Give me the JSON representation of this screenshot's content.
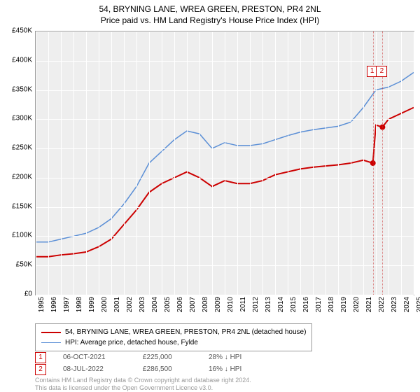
{
  "title": "54, BRYNING LANE, WREA GREEN, PRESTON, PR4 2NL",
  "subtitle": "Price paid vs. HM Land Registry's House Price Index (HPI)",
  "chart": {
    "type": "line",
    "background_color": "#eeeeee",
    "grid_color": "#ffffff",
    "border_color": "#999999",
    "x_range": [
      1995,
      2025
    ],
    "y_range": [
      0,
      450000
    ],
    "y_ticks": [
      0,
      50000,
      100000,
      150000,
      200000,
      250000,
      300000,
      350000,
      400000,
      450000
    ],
    "y_tick_labels": [
      "£0",
      "£50K",
      "£100K",
      "£150K",
      "£200K",
      "£250K",
      "£300K",
      "£350K",
      "£400K",
      "£450K"
    ],
    "x_ticks": [
      1995,
      1996,
      1997,
      1998,
      1999,
      2000,
      2001,
      2002,
      2003,
      2004,
      2005,
      2006,
      2007,
      2008,
      2009,
      2010,
      2011,
      2012,
      2013,
      2014,
      2015,
      2016,
      2017,
      2018,
      2019,
      2020,
      2021,
      2022,
      2023,
      2024,
      2025
    ],
    "series": [
      {
        "name": "54, BRYNING LANE, WREA GREEN, PRESTON, PR4 2NL (detached house)",
        "color": "#cc0000",
        "line_width": 2,
        "data": [
          [
            1995,
            65000
          ],
          [
            1996,
            65000
          ],
          [
            1997,
            68000
          ],
          [
            1998,
            70000
          ],
          [
            1999,
            73000
          ],
          [
            2000,
            82000
          ],
          [
            2001,
            95000
          ],
          [
            2002,
            120000
          ],
          [
            2003,
            145000
          ],
          [
            2004,
            175000
          ],
          [
            2005,
            190000
          ],
          [
            2006,
            200000
          ],
          [
            2007,
            210000
          ],
          [
            2008,
            200000
          ],
          [
            2009,
            185000
          ],
          [
            2010,
            195000
          ],
          [
            2011,
            190000
          ],
          [
            2012,
            190000
          ],
          [
            2013,
            195000
          ],
          [
            2014,
            205000
          ],
          [
            2015,
            210000
          ],
          [
            2016,
            215000
          ],
          [
            2017,
            218000
          ],
          [
            2018,
            220000
          ],
          [
            2019,
            222000
          ],
          [
            2020,
            225000
          ],
          [
            2021,
            230000
          ],
          [
            2021.76,
            225000
          ],
          [
            2022,
            290000
          ],
          [
            2022.52,
            286500
          ],
          [
            2023,
            300000
          ],
          [
            2024,
            310000
          ],
          [
            2025,
            320000
          ]
        ]
      },
      {
        "name": "HPI: Average price, detached house, Fylde",
        "color": "#5b8fd6",
        "line_width": 1.5,
        "data": [
          [
            1995,
            90000
          ],
          [
            1996,
            90000
          ],
          [
            1997,
            95000
          ],
          [
            1998,
            100000
          ],
          [
            1999,
            105000
          ],
          [
            2000,
            115000
          ],
          [
            2001,
            130000
          ],
          [
            2002,
            155000
          ],
          [
            2003,
            185000
          ],
          [
            2004,
            225000
          ],
          [
            2005,
            245000
          ],
          [
            2006,
            265000
          ],
          [
            2007,
            280000
          ],
          [
            2008,
            275000
          ],
          [
            2009,
            250000
          ],
          [
            2010,
            260000
          ],
          [
            2011,
            255000
          ],
          [
            2012,
            255000
          ],
          [
            2013,
            258000
          ],
          [
            2014,
            265000
          ],
          [
            2015,
            272000
          ],
          [
            2016,
            278000
          ],
          [
            2017,
            282000
          ],
          [
            2018,
            285000
          ],
          [
            2019,
            288000
          ],
          [
            2020,
            295000
          ],
          [
            2021,
            320000
          ],
          [
            2022,
            350000
          ],
          [
            2023,
            355000
          ],
          [
            2024,
            365000
          ],
          [
            2025,
            380000
          ]
        ]
      }
    ],
    "markers": [
      {
        "n": 1,
        "x": 2021.76,
        "y": 225000,
        "badge_color": "#cc0000"
      },
      {
        "n": 2,
        "x": 2022.52,
        "y": 286500,
        "badge_color": "#cc0000"
      }
    ],
    "marker_badge_top_y": 100000
  },
  "legend": {
    "items": [
      {
        "color": "#cc0000",
        "label": "54, BRYNING LANE, WREA GREEN, PRESTON, PR4 2NL (detached house)",
        "weight": 2
      },
      {
        "color": "#5b8fd6",
        "label": "HPI: Average price, detached house, Fylde",
        "weight": 1.5
      }
    ]
  },
  "sales": [
    {
      "n": "1",
      "badge_color": "#cc0000",
      "date": "06-OCT-2021",
      "price": "£225,000",
      "delta": "28% ↓ HPI"
    },
    {
      "n": "2",
      "badge_color": "#cc0000",
      "date": "08-JUL-2022",
      "price": "£286,500",
      "delta": "16% ↓ HPI"
    }
  ],
  "footer": {
    "line1": "Contains HM Land Registry data © Crown copyright and database right 2024.",
    "line2": "This data is licensed under the Open Government Licence v3.0."
  }
}
